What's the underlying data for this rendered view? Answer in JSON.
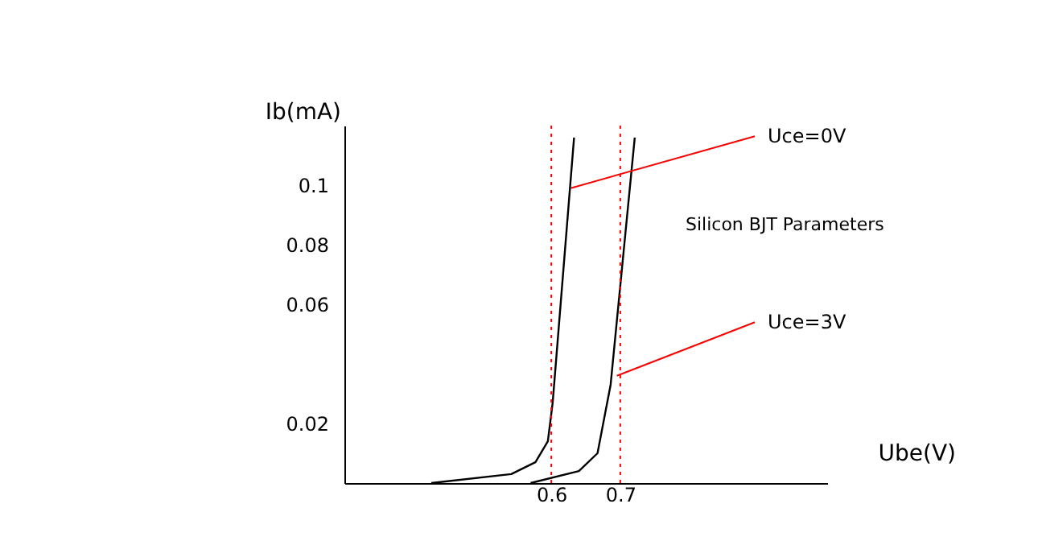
{
  "chart_data": {
    "type": "line",
    "xlabel": "Ube(V)",
    "ylabel": "Ib(mA)",
    "xlim": [
      0.3,
      1.0
    ],
    "ylim": [
      0,
      0.12
    ],
    "xticks": [
      0.6,
      0.7
    ],
    "yticks": [
      0.02,
      0.06,
      0.08,
      {
        "value": 0.1,
        "label": "0.1"
      }
    ],
    "marker": "none",
    "line_style": "solid",
    "series": [
      {
        "color": "#000000",
        "x": [
          0.426,
          0.542,
          0.577,
          0.595,
          0.602,
          0.633
        ],
        "values": [
          0,
          0.003,
          0.007,
          0.014,
          0.027,
          0.116
        ]
      },
      {
        "color": "#000000",
        "x": [
          0.57,
          0.64,
          0.667,
          0.686,
          0.721
        ],
        "values": [
          0,
          0.004,
          0.01,
          0.033,
          0.116
        ]
      }
    ],
    "ref_lines": [
      {
        "axis": "x",
        "value": 0.6,
        "color": "#ff0000",
        "line_style": "dotted"
      },
      {
        "axis": "x",
        "value": 0.7,
        "color": "#ff0000",
        "line_style": "dotted"
      }
    ],
    "annotations": [
      {
        "text": "Uce=0V",
        "x": 0.628,
        "y": 0.099
      },
      {
        "text": "Uce=3V",
        "x": 0.695,
        "y": 0.036
      },
      "Silicon BJT Parameters"
    ]
  }
}
